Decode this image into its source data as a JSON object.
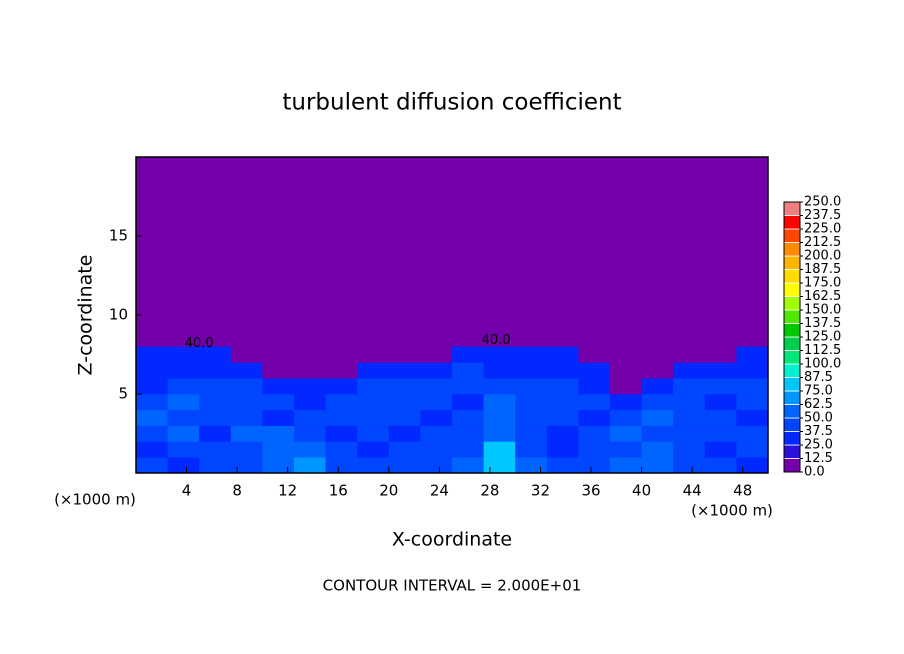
{
  "chart_data": {
    "type": "heatmap",
    "title": "turbulent diffusion coefficient",
    "xlabel": "X-coordinate",
    "ylabel": "Z-coordinate",
    "x_unit": "(×1000 m)",
    "footer": "CONTOUR INTERVAL = 2.000E+01",
    "xlim": [
      0,
      50
    ],
    "ylim": [
      0,
      20
    ],
    "xticks": [
      4,
      8,
      12,
      16,
      20,
      24,
      28,
      32,
      36,
      40,
      44,
      48
    ],
    "yticks": [
      5,
      10,
      15
    ],
    "x_edges": [
      0,
      2.5,
      5,
      7.5,
      10,
      12.5,
      15,
      17.5,
      20,
      22.5,
      25,
      27.5,
      30,
      32.5,
      35,
      37.5,
      40,
      42.5,
      45,
      47.5,
      50
    ],
    "z_edges": [
      0,
      1,
      2,
      3,
      4,
      5,
      6,
      7,
      8
    ],
    "values": [
      [
        40,
        35,
        45,
        40,
        55,
        70,
        45,
        40,
        40,
        45,
        55,
        80,
        50,
        40,
        45,
        50,
        60,
        45,
        40,
        35
      ],
      [
        35,
        40,
        40,
        45,
        60,
        55,
        40,
        35,
        40,
        40,
        45,
        75,
        40,
        35,
        40,
        45,
        50,
        40,
        35,
        40
      ],
      [
        45,
        50,
        35,
        55,
        50,
        40,
        35,
        40,
        35,
        40,
        45,
        60,
        40,
        35,
        45,
        50,
        40,
        40,
        45,
        40
      ],
      [
        50,
        45,
        45,
        40,
        35,
        40,
        40,
        45,
        40,
        35,
        40,
        55,
        45,
        40,
        35,
        45,
        55,
        40,
        40,
        35
      ],
      [
        40,
        50,
        40,
        45,
        40,
        35,
        40,
        40,
        45,
        40,
        35,
        50,
        40,
        45,
        40,
        30,
        45,
        45,
        35,
        40
      ],
      [
        35,
        45,
        40,
        40,
        35,
        30,
        35,
        40,
        40,
        45,
        40,
        45,
        40,
        40,
        35,
        0,
        35,
        40,
        45,
        40
      ],
      [
        30,
        35,
        35,
        30,
        0,
        0,
        0,
        35,
        30,
        35,
        40,
        35,
        35,
        30,
        30,
        0,
        0,
        30,
        35,
        30
      ],
      [
        25,
        30,
        30,
        0,
        0,
        0,
        0,
        0,
        0,
        0,
        35,
        30,
        30,
        25,
        0,
        0,
        0,
        0,
        0,
        30
      ]
    ],
    "annotations": [
      {
        "text": "40.0",
        "x": 5,
        "y": 8.2
      },
      {
        "text": "40.0",
        "x": 28.5,
        "y": 8.4
      }
    ],
    "clim": [
      0,
      250
    ],
    "cbar_ticks": [
      {
        "value": 0,
        "label": "0.0"
      },
      12.5,
      {
        "value": 25,
        "label": "25.0"
      },
      37.5,
      {
        "value": 50,
        "label": "50.0"
      },
      62.5,
      {
        "value": 75,
        "label": "75.0"
      },
      87.5,
      {
        "value": 100,
        "label": "100.0"
      },
      112.5,
      {
        "value": 125,
        "label": "125.0"
      },
      137.5,
      {
        "value": 150,
        "label": "150.0"
      },
      162.5,
      {
        "value": 175,
        "label": "175.0"
      },
      187.5,
      {
        "value": 200,
        "label": "200.0"
      },
      212.5,
      {
        "value": 225,
        "label": "225.0"
      },
      237.5,
      {
        "value": 250,
        "label": "250.0"
      }
    ],
    "colors": [
      "#7300a8",
      "#2a10d8",
      "#0028ff",
      "#0046ff",
      "#0064ff",
      "#0096ff",
      "#00c8ff",
      "#00f0d0",
      "#00e678",
      "#00d050",
      "#00c800",
      "#50e600",
      "#a0ff00",
      "#ffff00",
      "#ffdc00",
      "#ffb400",
      "#ff8c00",
      "#ff4600",
      "#ff0000",
      "#f08080"
    ]
  }
}
